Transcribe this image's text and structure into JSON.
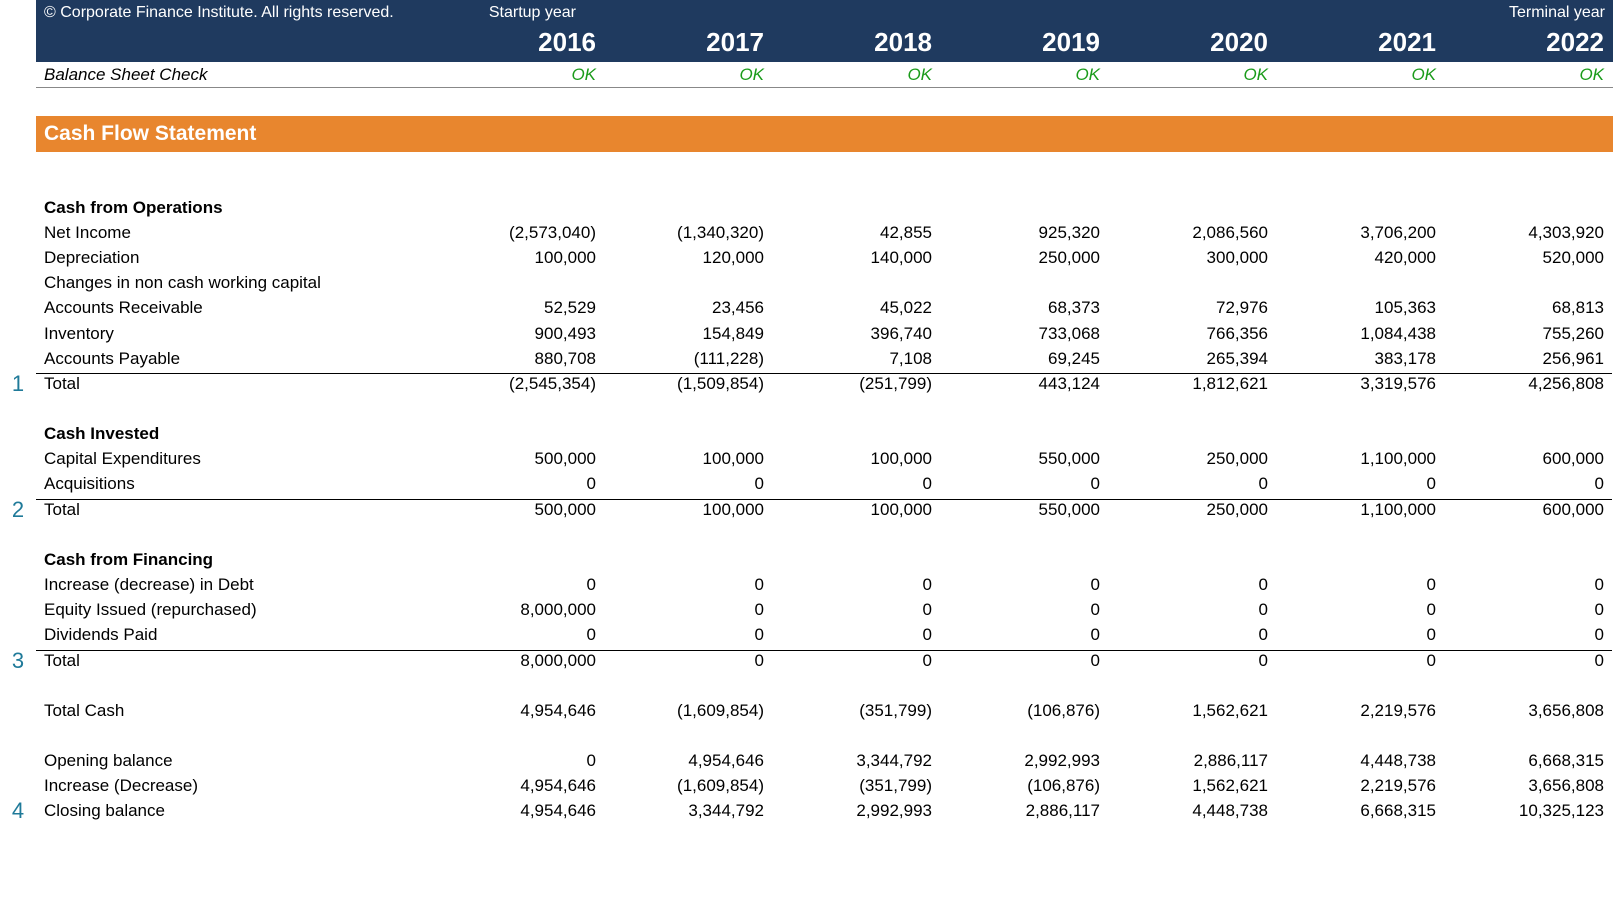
{
  "colors": {
    "header_bg": "#1f3a5f",
    "header_text": "#ffffff",
    "banner_bg": "#e8862e",
    "banner_text": "#ffffff",
    "ok_text": "#1a9b1a",
    "marker_text": "#1f7a99",
    "body_text": "#000000",
    "rule": "#000000"
  },
  "header": {
    "copyright": "© Corporate Finance Institute. All rights reserved.",
    "startup_label": "Startup year",
    "terminal_label": "Terminal year",
    "years": [
      "2016",
      "2017",
      "2018",
      "2019",
      "2020",
      "2021",
      "2022"
    ]
  },
  "check": {
    "label": "Balance Sheet Check",
    "values": [
      "OK",
      "OK",
      "OK",
      "OK",
      "OK",
      "OK",
      "OK"
    ]
  },
  "section_title": "Cash Flow Statement",
  "groups": [
    {
      "heading": "Cash from Operations",
      "marker": "1",
      "rows": [
        {
          "label": "Net Income",
          "values": [
            "(2,573,040)",
            "(1,340,320)",
            "42,855",
            "925,320",
            "2,086,560",
            "3,706,200",
            "4,303,920"
          ]
        },
        {
          "label": "Depreciation",
          "values": [
            "100,000",
            "120,000",
            "140,000",
            "250,000",
            "300,000",
            "420,000",
            "520,000"
          ]
        },
        {
          "label": "Changes in non cash working capital",
          "values": [
            "",
            "",
            "",
            "",
            "",
            "",
            ""
          ]
        },
        {
          "label": "Accounts Receivable",
          "values": [
            "52,529",
            "23,456",
            "45,022",
            "68,373",
            "72,976",
            "105,363",
            "68,813"
          ]
        },
        {
          "label": "Inventory",
          "values": [
            "900,493",
            "154,849",
            "396,740",
            "733,068",
            "766,356",
            "1,084,438",
            "755,260"
          ]
        },
        {
          "label": "Accounts Payable",
          "values": [
            "880,708",
            "(111,228)",
            "7,108",
            "69,245",
            "265,394",
            "383,178",
            "256,961"
          ]
        }
      ],
      "total": {
        "label": "Total",
        "values": [
          "(2,545,354)",
          "(1,509,854)",
          "(251,799)",
          "443,124",
          "1,812,621",
          "3,319,576",
          "4,256,808"
        ]
      }
    },
    {
      "heading": "Cash Invested",
      "marker": "2",
      "rows": [
        {
          "label": "Capital Expenditures",
          "values": [
            "500,000",
            "100,000",
            "100,000",
            "550,000",
            "250,000",
            "1,100,000",
            "600,000"
          ]
        },
        {
          "label": "Acquisitions",
          "values": [
            "0",
            "0",
            "0",
            "0",
            "0",
            "0",
            "0"
          ]
        }
      ],
      "total": {
        "label": "Total",
        "values": [
          "500,000",
          "100,000",
          "100,000",
          "550,000",
          "250,000",
          "1,100,000",
          "600,000"
        ]
      }
    },
    {
      "heading": "Cash from Financing",
      "marker": "3",
      "rows": [
        {
          "label": "Increase (decrease) in Debt",
          "values": [
            "0",
            "0",
            "0",
            "0",
            "0",
            "0",
            "0"
          ]
        },
        {
          "label": "Equity Issued (repurchased)",
          "values": [
            "8,000,000",
            "0",
            "0",
            "0",
            "0",
            "0",
            "0"
          ]
        },
        {
          "label": "Dividends Paid",
          "values": [
            "0",
            "0",
            "0",
            "0",
            "0",
            "0",
            "0"
          ]
        }
      ],
      "total": {
        "label": "Total",
        "values": [
          "8,000,000",
          "0",
          "0",
          "0",
          "0",
          "0",
          "0"
        ]
      }
    }
  ],
  "summary": {
    "total_cash": {
      "label": "Total Cash",
      "values": [
        "4,954,646",
        "(1,609,854)",
        "(351,799)",
        "(106,876)",
        "1,562,621",
        "2,219,576",
        "3,656,808"
      ]
    },
    "opening": {
      "label": "Opening balance",
      "values": [
        "0",
        "4,954,646",
        "3,344,792",
        "2,992,993",
        "2,886,117",
        "4,448,738",
        "6,668,315"
      ]
    },
    "increase": {
      "label": "Increase (Decrease)",
      "values": [
        "4,954,646",
        "(1,609,854)",
        "(351,799)",
        "(106,876)",
        "1,562,621",
        "2,219,576",
        "3,656,808"
      ]
    },
    "closing": {
      "label": "Closing balance",
      "marker": "4",
      "values": [
        "4,954,646",
        "3,344,792",
        "2,992,993",
        "2,886,117",
        "4,448,738",
        "6,668,315",
        "10,325,123"
      ]
    }
  }
}
